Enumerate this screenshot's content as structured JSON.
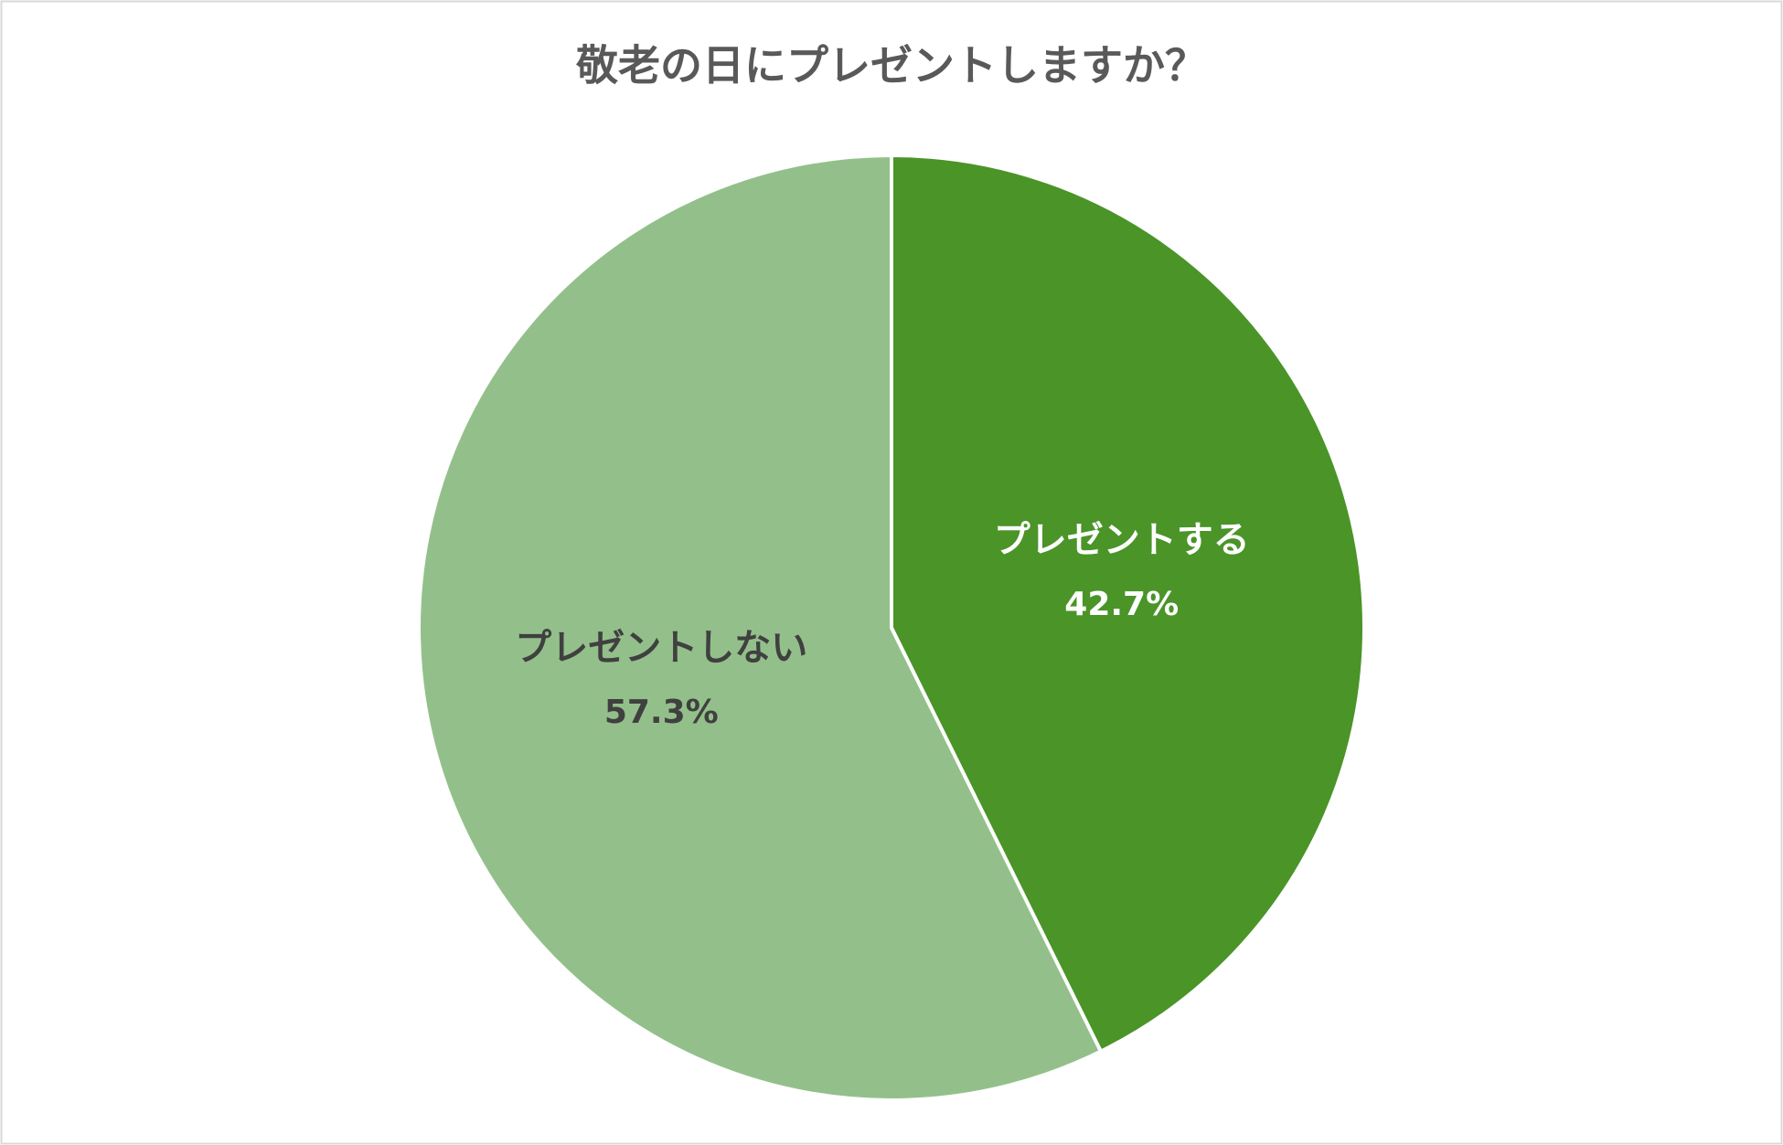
{
  "chart_data": {
    "type": "pie",
    "title": "敬老の日にプレゼントしますか？",
    "categories": [
      "プレゼントする",
      "プレゼントしない"
    ],
    "values": [
      42.7,
      57.3
    ],
    "value_labels": [
      "42.7%",
      "57.3%"
    ],
    "colors": [
      "#4a9428",
      "#93c08a"
    ]
  }
}
